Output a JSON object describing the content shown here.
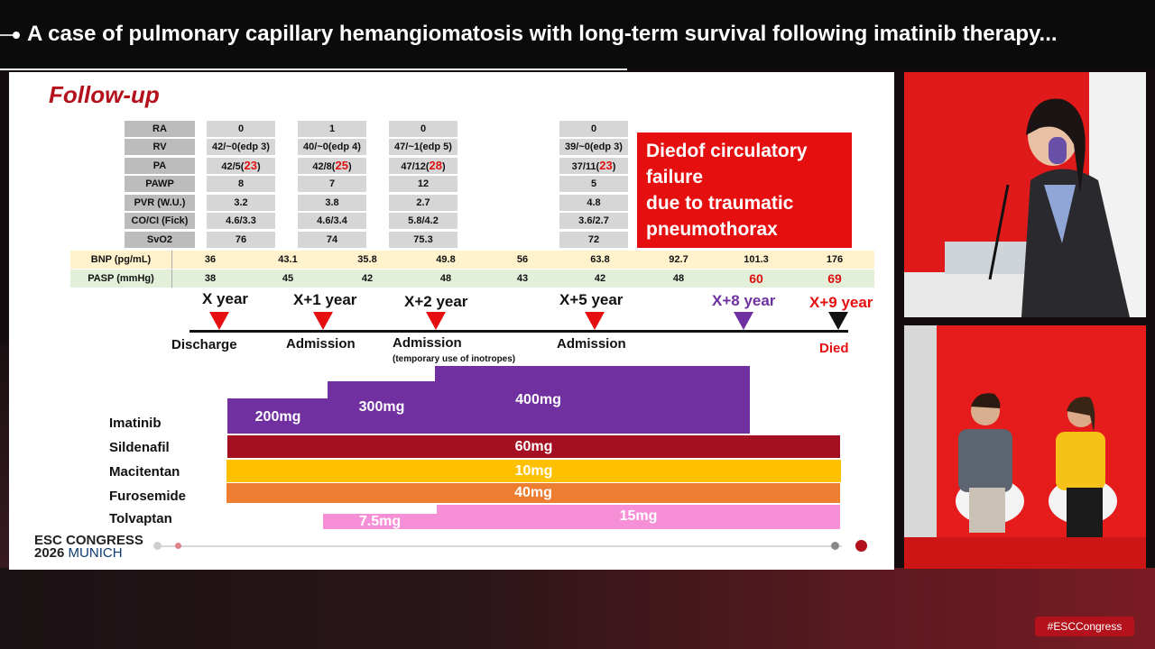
{
  "header": {
    "title": "A case of pulmonary capillary hemangiomatosis with long-term survival following imatinib therapy..."
  },
  "slide": {
    "title": "Follow-up",
    "hemo_labels": [
      "RA",
      "RV",
      "PA",
      "PAWP",
      "PVR (W.U.)",
      "CO/CI (Fick)",
      "SvO2"
    ],
    "hemo_columns": [
      {
        "RA": "0",
        "RV": "42/~0(edp 3)",
        "PA_pre": "42/5(",
        "PA_mean": "23",
        "PAWP": "8",
        "PVR": "3.2",
        "COCI": "4.6/3.3",
        "SvO2": "76"
      },
      {
        "RA": "1",
        "RV": "40/~0(edp 4)",
        "PA_pre": "42/8(",
        "PA_mean": "25",
        "PAWP": "7",
        "PVR": "3.8",
        "COCI": "4.6/3.4",
        "SvO2": "74"
      },
      {
        "RA": "0",
        "RV": "47/~1(edp 5)",
        "PA_pre": "47/12(",
        "PA_mean": "28",
        "PAWP": "12",
        "PVR": "2.7",
        "COCI": "5.8/4.2",
        "SvO2": "75.3"
      },
      {
        "RA": "0",
        "RV": "39/~0(edp 3)",
        "PA_pre": "37/11(",
        "PA_mean": "23",
        "PAWP": "5",
        "PVR": "4.8",
        "COCI": "3.6/2.7",
        "SvO2": "72"
      }
    ],
    "died_box": [
      "Diedof circulatory",
      "failure",
      "due to traumatic",
      "pneumothorax"
    ],
    "bnp": {
      "label": "BNP (pg/mL)",
      "values": [
        "36",
        "43.1",
        "35.8",
        "49.8",
        "56",
        "63.8",
        "92.7",
        "101.3",
        "176"
      ]
    },
    "pasp": {
      "label": "PASP (mmHg)",
      "values": [
        "38",
        "45",
        "42",
        "48",
        "43",
        "42",
        "48",
        "60",
        "69"
      ]
    },
    "timeline": {
      "years": [
        "X year",
        "X+1 year",
        "X+2 year",
        "X+5 year",
        "X+8 year",
        "X+9 year"
      ],
      "events": [
        "Discharge",
        "Admission",
        "Admission",
        "Admission",
        "Died"
      ],
      "event_note": "(temporary use of inotropes)"
    },
    "drugs": {
      "imatinib": {
        "name": "Imatinib",
        "doses": [
          "200mg",
          "300mg",
          "400mg"
        ]
      },
      "sildenafil": {
        "name": "Sildenafil",
        "dose": "60mg"
      },
      "macitentan": {
        "name": "Macitentan",
        "dose": "10mg"
      },
      "furosemide": {
        "name": "Furosemide",
        "dose": "40mg"
      },
      "tolvaptan": {
        "name": "Tolvaptan",
        "doses": [
          "7.5mg",
          "15mg"
        ]
      }
    },
    "footer": {
      "line1": "ESC CONGRESS",
      "year": "2026",
      "city": "MUNICH"
    }
  },
  "hashtag": "#ESCCongress",
  "colors": {
    "accent_red": "#e60f10",
    "imatinib": "#7030a0",
    "sildenafil": "#a50f22",
    "macitentan": "#ffc000",
    "furosemide": "#ed7d31",
    "tolvaptan": "#f78fd6",
    "x8_purple": "#7030a0"
  }
}
